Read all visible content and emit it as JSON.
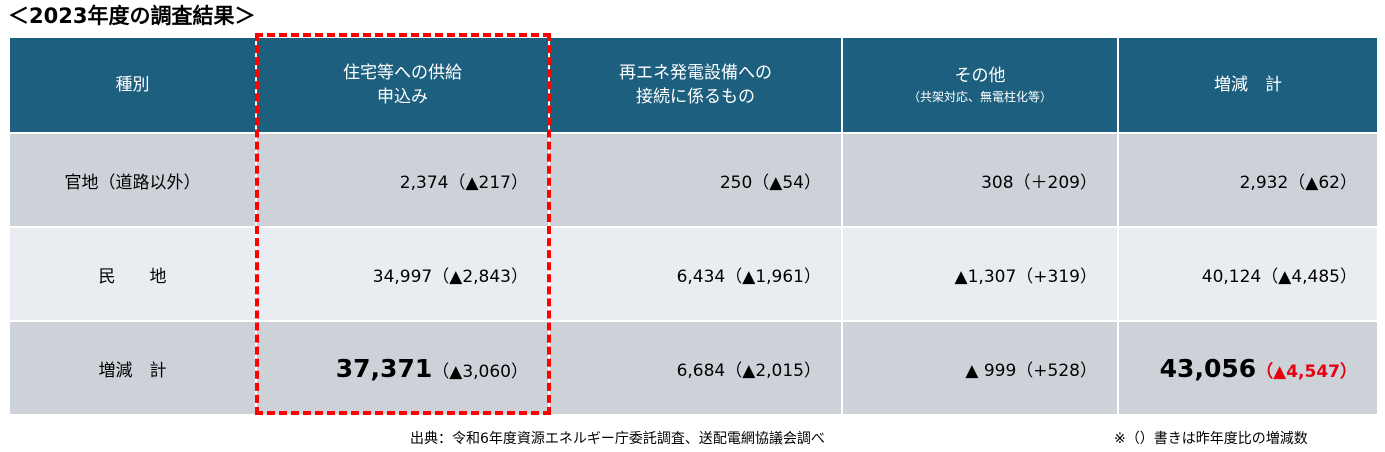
{
  "title": "＜2023年度の調査結果＞",
  "headers": {
    "category": "種別",
    "housing_line1": "住宅等への供給",
    "housing_line2": "申込み",
    "renewable_line1": "再エネ発電設備への",
    "renewable_line2": "接続に係るもの",
    "other_line1": "その他",
    "other_line2": "（共架対応、無電柱化等）",
    "total": "増減　計"
  },
  "rows": [
    {
      "label": "官地（道路以外）",
      "housing_value": "2,374",
      "housing_change": "（▲217）",
      "renewable_value": "250",
      "renewable_change": "（▲54）",
      "other_value": "308",
      "other_change": "（＋209）",
      "total_value": "2,932",
      "total_change": "（▲62）"
    },
    {
      "label": "民　　地",
      "housing_value": "34,997",
      "housing_change": "（▲2,843）",
      "renewable_value": "6,434",
      "renewable_change": "（▲1,961）",
      "other_value": "▲1,307",
      "other_change": "（+319）",
      "total_value": "40,124",
      "total_change": "（▲4,485）"
    },
    {
      "label": "増減　計",
      "housing_value": "37,371",
      "housing_change": "（▲3,060）",
      "renewable_value": "6,684",
      "renewable_change": "（▲2,015）",
      "other_value": "▲ 999",
      "other_change": "（+528）",
      "total_value": "43,056",
      "total_change": "（▲4,547）"
    }
  ],
  "source": "出典：令和6年度資源エネルギー庁委託調査、送配電網協議会調べ",
  "note": "※（）書きは昨年度比の増減数",
  "colors": {
    "header_bg": "#1d5f7f",
    "row_dark": "#cdd2d9",
    "row_light": "#e9ecf0",
    "highlight_border": "#ff0000",
    "emphasis_red": "#e60012"
  }
}
